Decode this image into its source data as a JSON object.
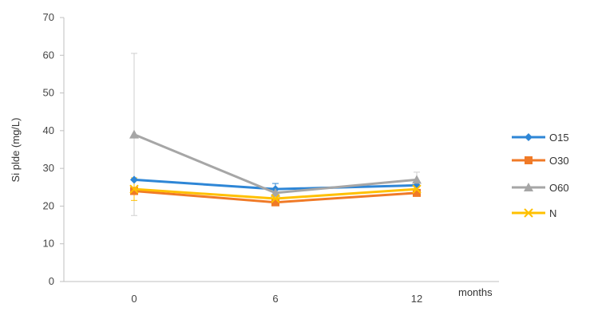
{
  "chart_data": {
    "type": "line",
    "title": "",
    "xlabel": "months",
    "ylabel": "Si plde (mg/L)",
    "categories": [
      "0",
      "6",
      "12"
    ],
    "ylim": [
      0,
      70
    ],
    "yticks": [
      "0",
      "10",
      "20",
      "30",
      "40",
      "50",
      "60",
      "70"
    ],
    "grid": false,
    "legend_position": "right",
    "series": [
      {
        "name": "O15",
        "values": [
          27,
          24.5,
          25.5
        ],
        "color": "#2e86d6",
        "marker": "diamond-icon",
        "error": [
          0,
          1.5,
          0
        ]
      },
      {
        "name": "O30",
        "values": [
          24,
          21,
          23.5
        ],
        "color": "#f07a27",
        "marker": "square-icon",
        "error": [
          0,
          0,
          0
        ]
      },
      {
        "name": "O60",
        "values": [
          39,
          23.5,
          27
        ],
        "color": "#a6a6a6",
        "marker": "triangle-icon",
        "error": [
          21.5,
          0,
          2
        ]
      },
      {
        "name": "N",
        "values": [
          24.5,
          22,
          24.5
        ],
        "color": "#ffc000",
        "marker": "x-icon",
        "error": [
          3,
          0,
          0
        ]
      }
    ]
  }
}
